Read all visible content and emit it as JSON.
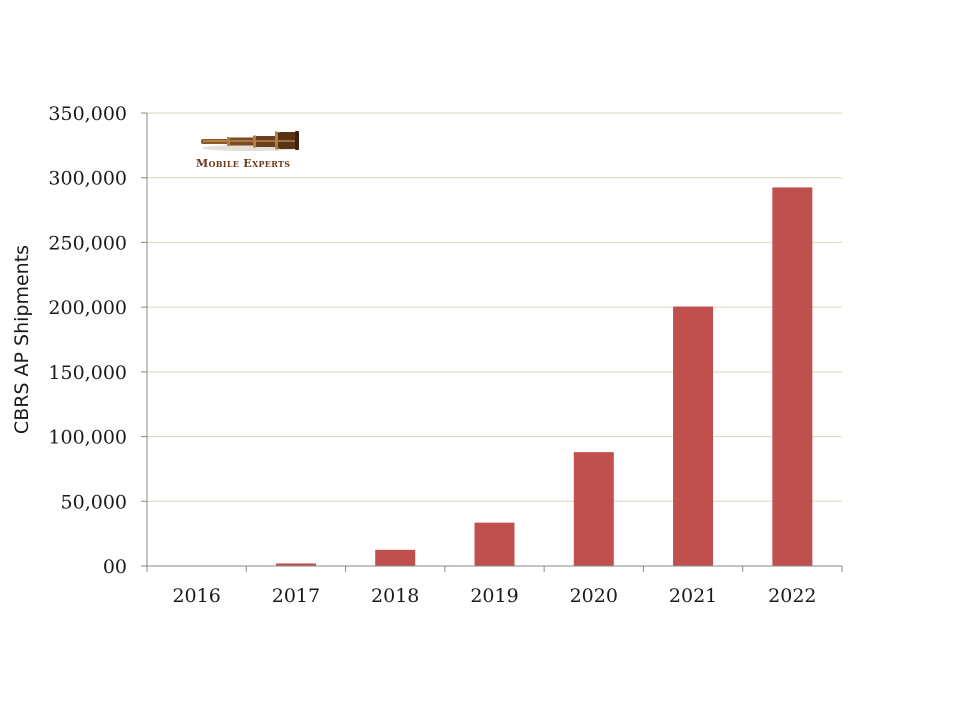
{
  "logo": {
    "text": "Mobile Experts",
    "icon": "telescope-icon"
  },
  "chart_data": {
    "type": "bar",
    "categories": [
      "2016",
      "2017",
      "2018",
      "2019",
      "2020",
      "2021",
      "2022"
    ],
    "series": [
      {
        "values": [
          0,
          2000,
          12500,
          33500,
          88000,
          200500,
          292500
        ],
        "color": "#c0504d"
      }
    ],
    "ylabel": "CBRS AP Shipments",
    "xlabel": "",
    "title": "",
    "ylim": [
      0,
      350000
    ],
    "yticks": [
      "00",
      "50,000",
      "100,000",
      "150,000",
      "200,000",
      "250,000",
      "300,000",
      "350,000"
    ],
    "ytick_values": [
      0,
      50000,
      100000,
      150000,
      200000,
      250000,
      300000,
      350000
    ],
    "grid": true,
    "gridline_color": "#e3ddc6",
    "axis_color": "#888888",
    "legend": "none"
  }
}
